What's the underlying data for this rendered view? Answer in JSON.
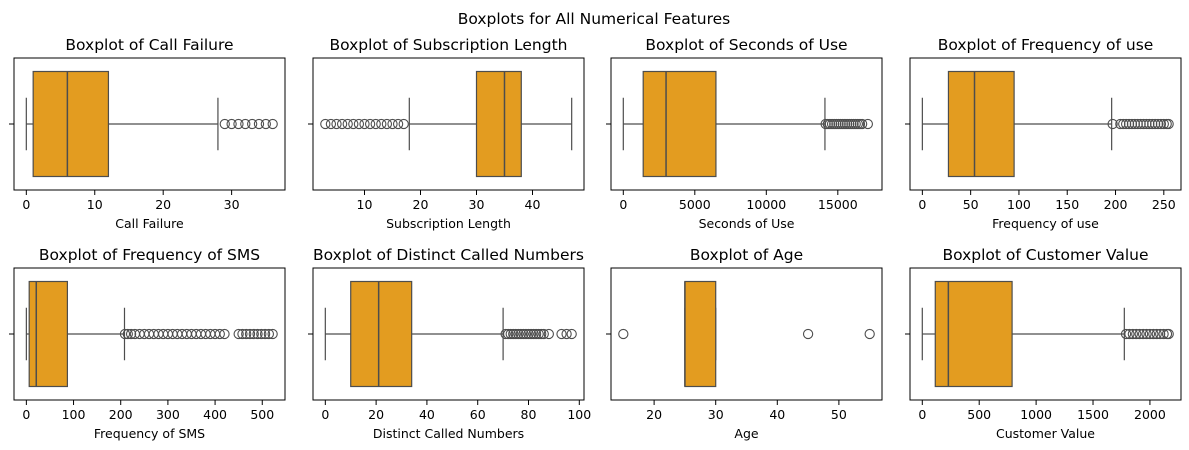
{
  "figure_title": "Boxplots for All Numerical Features",
  "colors": {
    "box_fill": "#e39c20",
    "box_edge": "#4d4d4d",
    "flier_edge": "#4d4d4d"
  },
  "chart_data": [
    {
      "type": "box",
      "title": "Boxplot of Call  Failure",
      "xlabel": "Call  Failure",
      "xlim": [
        -1.8,
        37.8
      ],
      "xticks": [
        0,
        10,
        20,
        30
      ],
      "tick_labels": [
        "0",
        "10",
        "20",
        "30"
      ],
      "stats": {
        "whisker_low": 0,
        "q1": 1,
        "median": 6,
        "q3": 12,
        "whisker_high": 28
      },
      "outliers": [
        29,
        30,
        31,
        32,
        33,
        34,
        35,
        36
      ]
    },
    {
      "type": "box",
      "title": "Boxplot of Subscription  Length",
      "xlabel": "Subscription  Length",
      "xlim": [
        0.8,
        49.2
      ],
      "xticks": [
        10,
        20,
        30,
        40
      ],
      "tick_labels": [
        "10",
        "20",
        "30",
        "40"
      ],
      "stats": {
        "whisker_low": 18,
        "q1": 30,
        "median": 35,
        "q3": 38,
        "whisker_high": 47
      },
      "outliers": [
        3,
        4,
        5,
        6,
        7,
        8,
        9,
        10,
        11,
        12,
        13,
        14,
        15,
        16,
        17
      ]
    },
    {
      "type": "box",
      "title": "Boxplot of Seconds of Use",
      "xlabel": "Seconds of Use",
      "xlim": [
        -860,
        18090
      ],
      "xticks": [
        0,
        5000,
        10000,
        15000
      ],
      "tick_labels": [
        "0",
        "5000",
        "10000",
        "15000"
      ],
      "stats": {
        "whisker_low": 0,
        "q1": 1391,
        "median": 2990,
        "q3": 6478,
        "whisker_high": 14100
      },
      "outliers": [
        14150,
        14300,
        14450,
        14600,
        14750,
        14900,
        15050,
        15200,
        15350,
        15500,
        15650,
        15800,
        15950,
        16100,
        16250,
        16400,
        16550,
        16700,
        17100
      ]
    },
    {
      "type": "box",
      "title": "Boxplot of Frequency of use",
      "xlabel": "Frequency of use",
      "xlim": [
        -12.8,
        267.8
      ],
      "xticks": [
        0,
        50,
        100,
        150,
        200,
        250
      ],
      "tick_labels": [
        "0",
        "50",
        "100",
        "150",
        "200",
        "250"
      ],
      "stats": {
        "whisker_low": 0,
        "q1": 27,
        "median": 54,
        "q3": 95,
        "whisker_high": 196
      },
      "outliers": [
        197,
        205,
        208,
        211,
        214,
        217,
        220,
        223,
        226,
        229,
        232,
        235,
        238,
        241,
        244,
        247,
        250,
        253,
        255
      ]
    },
    {
      "type": "box",
      "title": "Boxplot of Frequency of SMS",
      "xlabel": "Frequency of SMS",
      "xlim": [
        -26.2,
        548.2
      ],
      "xticks": [
        0,
        100,
        200,
        300,
        400,
        500
      ],
      "tick_labels": [
        "0",
        "100",
        "200",
        "300",
        "400",
        "500"
      ],
      "stats": {
        "whisker_low": 0,
        "q1": 6,
        "median": 21,
        "q3": 87,
        "whisker_high": 208
      },
      "outliers": [
        209,
        215,
        222,
        230,
        240,
        250,
        260,
        270,
        280,
        290,
        300,
        310,
        320,
        330,
        340,
        350,
        360,
        370,
        380,
        390,
        400,
        410,
        420,
        450,
        458,
        466,
        474,
        482,
        490,
        498,
        506,
        514,
        522
      ]
    },
    {
      "type": "box",
      "title": "Boxplot of Distinct Called Numbers",
      "xlabel": "Distinct Called Numbers",
      "xlim": [
        -4.85,
        101.85
      ],
      "xticks": [
        0,
        20,
        40,
        60,
        80,
        100
      ],
      "tick_labels": [
        "0",
        "20",
        "40",
        "60",
        "80",
        "100"
      ],
      "stats": {
        "whisker_low": 0,
        "q1": 10,
        "median": 21,
        "q3": 34,
        "whisker_high": 70
      },
      "outliers": [
        71,
        72,
        73,
        74,
        75,
        76,
        77,
        78,
        79,
        80,
        81,
        82,
        83,
        84,
        85,
        86,
        88,
        93,
        95,
        97
      ]
    },
    {
      "type": "box",
      "title": "Boxplot of Age",
      "xlabel": "Age",
      "xlim": [
        13,
        57
      ],
      "xticks": [
        20,
        30,
        40,
        50
      ],
      "tick_labels": [
        "20",
        "30",
        "40",
        "50"
      ],
      "stats": {
        "whisker_low": 25,
        "q1": 25,
        "median": 25,
        "q3": 30,
        "whisker_high": 30
      },
      "outliers": [
        15,
        45,
        55
      ]
    },
    {
      "type": "box",
      "title": "Boxplot of Customer Value",
      "xlabel": "Customer Value",
      "xlim": [
        -108,
        2273
      ],
      "xticks": [
        0,
        500,
        1000,
        1500,
        2000
      ],
      "tick_labels": [
        "0",
        "500",
        "1000",
        "1500",
        "2000"
      ],
      "stats": {
        "whisker_low": 0,
        "q1": 114,
        "median": 229,
        "q3": 789,
        "whisker_high": 1775
      },
      "outliers": [
        1790,
        1820,
        1850,
        1880,
        1910,
        1940,
        1970,
        2000,
        2030,
        2060,
        2090,
        2120,
        2150,
        2165
      ]
    }
  ]
}
